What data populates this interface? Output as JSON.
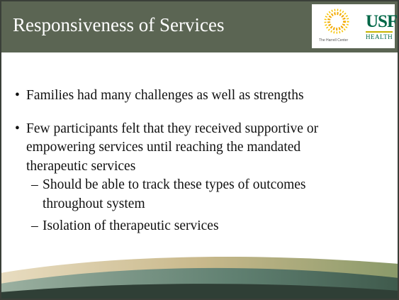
{
  "header": {
    "title": "Responsiveness of Services",
    "logo_caption": "The Harrell Center",
    "logo_usf": "USF",
    "logo_health": "HEALTH"
  },
  "bullets": [
    {
      "lines": [
        "Families had many challenges as well as strengths"
      ],
      "sub": []
    },
    {
      "lines": [
        "Few participants felt that they received supportive or",
        "empowering services until reaching the mandated",
        "therapeutic services"
      ],
      "sub": [
        {
          "lines": [
            "Should be able to track these types of outcomes",
            "throughout system"
          ]
        },
        {
          "lines": [
            "Isolation of therapeutic services"
          ]
        }
      ]
    }
  ]
}
